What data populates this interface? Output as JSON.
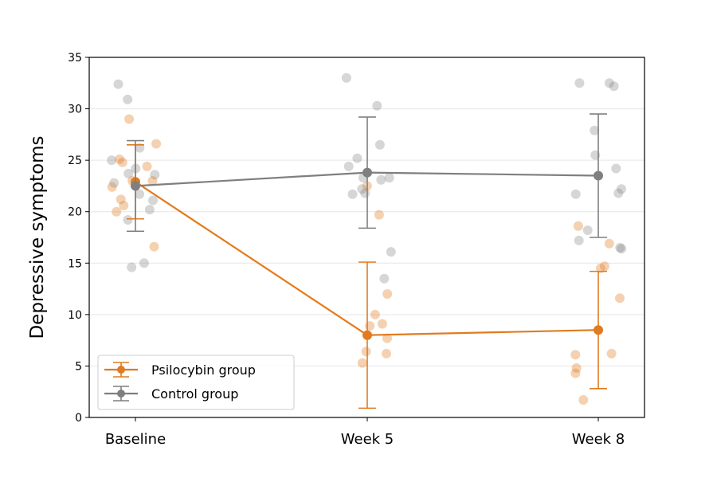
{
  "chart_data": {
    "type": "line",
    "categories": [
      "Baseline",
      "Week 5",
      "Week 8"
    ],
    "ylabel": "Depressive symptoms",
    "ylim": [
      0,
      35
    ],
    "yticks": [
      0,
      5,
      10,
      15,
      20,
      25,
      30,
      35
    ],
    "grid": "horizontal",
    "legend_position": "lower-left",
    "series": [
      {
        "name": "Psilocybin group",
        "color": "#e07b20",
        "means": [
          22.9,
          8.0,
          8.5
        ],
        "error_low": [
          19.3,
          0.9,
          2.8
        ],
        "error_high": [
          26.5,
          15.1,
          14.2
        ],
        "points": [
          [
            29.0,
            26.6,
            25.1,
            24.8,
            24.4,
            23.0,
            23.0,
            22.4,
            20.6,
            20.0,
            21.2,
            16.6
          ],
          [
            22.5,
            19.7,
            12.0,
            10.0,
            9.1,
            8.9,
            7.7,
            6.4,
            6.2,
            5.3
          ],
          [
            18.6,
            16.9,
            14.7,
            14.5,
            11.6,
            6.2,
            6.1,
            4.8,
            4.3,
            1.7
          ]
        ]
      },
      {
        "name": "Control group",
        "color": "#7f7f7f",
        "means": [
          22.5,
          23.8,
          23.5
        ],
        "error_low": [
          18.1,
          18.4,
          17.5
        ],
        "error_high": [
          26.9,
          29.2,
          29.5
        ],
        "points": [
          [
            32.4,
            30.9,
            26.2,
            25.0,
            24.2,
            23.7,
            23.6,
            22.8,
            21.7,
            21.1,
            20.2,
            19.2,
            15.0,
            14.6
          ],
          [
            33.0,
            30.3,
            26.5,
            25.2,
            24.4,
            23.3,
            23.3,
            23.1,
            22.2,
            21.8,
            21.7,
            16.1,
            13.5
          ],
          [
            32.5,
            32.5,
            32.2,
            27.9,
            25.5,
            24.2,
            22.2,
            21.8,
            21.7,
            18.2,
            17.2,
            16.5,
            16.4
          ]
        ]
      }
    ]
  }
}
